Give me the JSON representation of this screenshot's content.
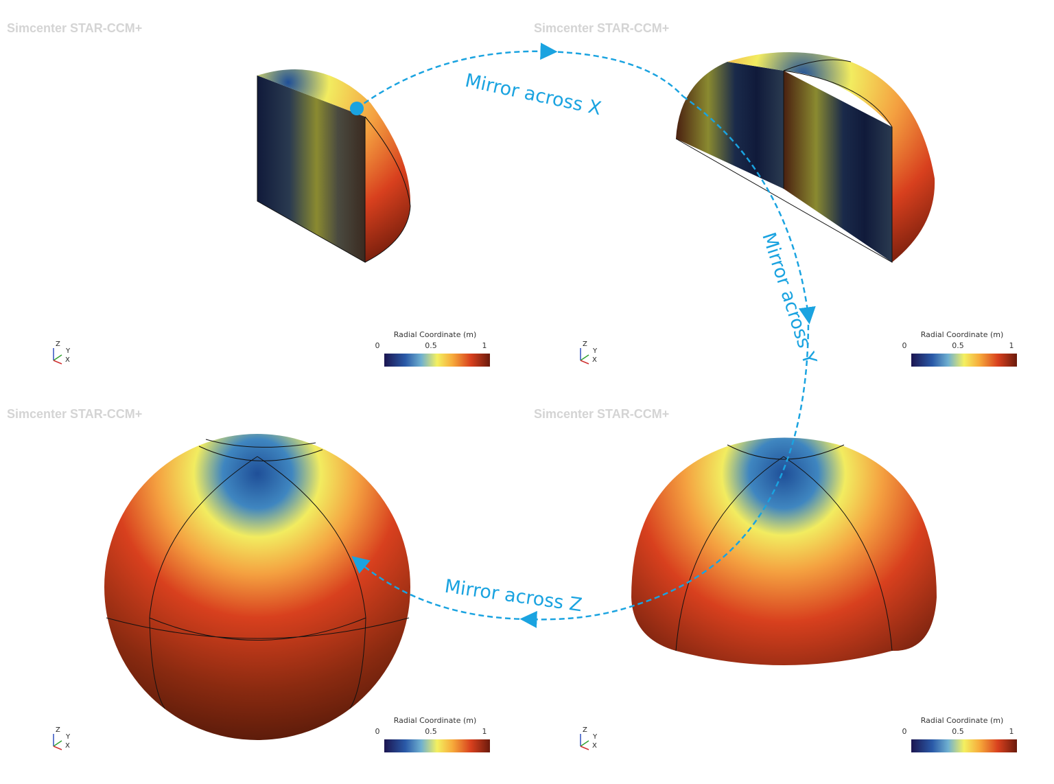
{
  "panels": [
    {
      "watermark": "Simcenter STAR-CCM+",
      "legend": {
        "title": "Radial Coordinate (m)",
        "ticks": [
          "0",
          "0.5",
          "1"
        ]
      },
      "triad": {
        "z": "Z",
        "y": "Y",
        "x": "X"
      }
    },
    {
      "watermark": "Simcenter STAR-CCM+",
      "legend": {
        "title": "Radial Coordinate (m)",
        "ticks": [
          "0",
          "0.5",
          "1"
        ]
      },
      "triad": {
        "z": "Z",
        "y": "Y",
        "x": "X"
      }
    },
    {
      "watermark": "Simcenter STAR-CCM+",
      "legend": {
        "title": "Radial Coordinate (m)",
        "ticks": [
          "0",
          "0.5",
          "1"
        ]
      },
      "triad": {
        "z": "Z",
        "y": "Y",
        "x": "X"
      }
    },
    {
      "watermark": "Simcenter STAR-CCM+",
      "legend": {
        "title": "Radial Coordinate (m)",
        "ticks": [
          "0",
          "0.5",
          "1"
        ]
      },
      "triad": {
        "z": "Z",
        "y": "Y",
        "x": "X"
      }
    }
  ],
  "arrows": [
    {
      "label": "Mirror across X"
    },
    {
      "label": "Mirror across Y"
    },
    {
      "label": "Mirror across Z"
    }
  ]
}
